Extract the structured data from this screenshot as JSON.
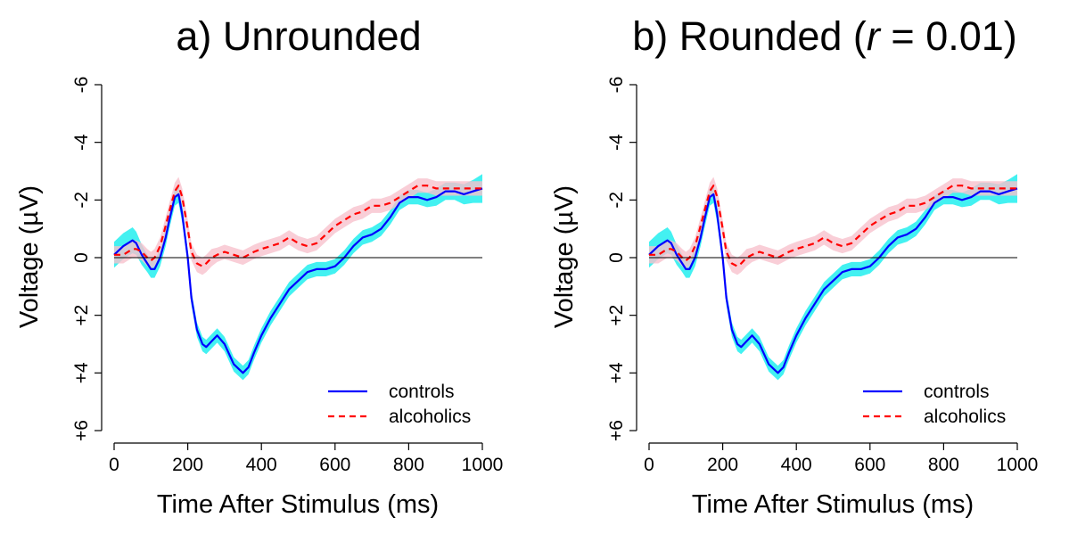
{
  "chart_data": [
    {
      "type": "line",
      "title_prefix": "a)  Unrounded",
      "title_italic": "",
      "title_suffix": "",
      "xlabel": "Time After Stimulus (ms)",
      "ylabel": "Voltage (µV)",
      "xlim": [
        0,
        1000
      ],
      "ylim": [
        6,
        -6
      ],
      "y_axis_inverted": true,
      "x_ticks": [
        "0",
        "200",
        "400",
        "600",
        "800",
        "1000"
      ],
      "y_ticks": [
        "-6",
        "-4",
        "-2",
        "0",
        "+2",
        "+4",
        "+6"
      ],
      "reference_line_y": 0,
      "legend_position": "bottom-right",
      "x": [
        0,
        25,
        50,
        60,
        75,
        90,
        100,
        110,
        125,
        140,
        150,
        165,
        175,
        185,
        200,
        210,
        225,
        240,
        250,
        265,
        280,
        300,
        325,
        350,
        365,
        380,
        400,
        425,
        450,
        475,
        500,
        525,
        550,
        575,
        600,
        625,
        650,
        675,
        700,
        725,
        750,
        775,
        800,
        825,
        850,
        875,
        900,
        925,
        950,
        975,
        1000
      ],
      "series": [
        {
          "name": "controls",
          "color": "#0000ff",
          "band_color": "#22eeee",
          "style": "solid",
          "values": [
            -0.1,
            -0.4,
            -0.6,
            -0.5,
            -0.1,
            0.2,
            0.4,
            0.4,
            0.0,
            -0.7,
            -1.3,
            -2.1,
            -2.2,
            -1.5,
            0.0,
            1.4,
            2.5,
            3.0,
            3.1,
            2.9,
            2.7,
            3.0,
            3.7,
            4.0,
            3.8,
            3.3,
            2.7,
            2.1,
            1.6,
            1.1,
            0.8,
            0.5,
            0.4,
            0.4,
            0.3,
            0.0,
            -0.4,
            -0.7,
            -0.8,
            -1.0,
            -1.4,
            -1.9,
            -2.1,
            -2.1,
            -2.0,
            -2.1,
            -2.3,
            -2.3,
            -2.2,
            -2.3,
            -2.4
          ],
          "band_halfwidth": [
            0.45,
            0.45,
            0.45,
            0.4,
            0.35,
            0.3,
            0.3,
            0.3,
            0.3,
            0.3,
            0.3,
            0.3,
            0.3,
            0.3,
            0.25,
            0.25,
            0.25,
            0.25,
            0.25,
            0.25,
            0.25,
            0.25,
            0.25,
            0.25,
            0.25,
            0.25,
            0.25,
            0.25,
            0.25,
            0.25,
            0.25,
            0.25,
            0.25,
            0.25,
            0.25,
            0.25,
            0.25,
            0.25,
            0.25,
            0.25,
            0.25,
            0.25,
            0.25,
            0.25,
            0.25,
            0.3,
            0.3,
            0.3,
            0.35,
            0.4,
            0.5
          ]
        },
        {
          "name": "alcoholics",
          "color": "#ff0000",
          "band_color": "#f7c2cd",
          "style": "dashed",
          "values": [
            -0.1,
            -0.1,
            -0.3,
            -0.3,
            -0.2,
            0.0,
            0.1,
            0.0,
            -0.4,
            -1.1,
            -1.6,
            -2.3,
            -2.5,
            -2.1,
            -1.0,
            -0.2,
            0.2,
            0.3,
            0.2,
            0.0,
            -0.1,
            -0.2,
            -0.1,
            0.0,
            -0.1,
            -0.2,
            -0.3,
            -0.4,
            -0.5,
            -0.7,
            -0.5,
            -0.4,
            -0.5,
            -0.8,
            -1.1,
            -1.3,
            -1.5,
            -1.6,
            -1.8,
            -1.8,
            -1.9,
            -2.1,
            -2.3,
            -2.5,
            -2.5,
            -2.4,
            -2.4,
            -2.4,
            -2.4,
            -2.4,
            -2.4
          ],
          "band_halfwidth": [
            0.3,
            0.3,
            0.3,
            0.3,
            0.3,
            0.3,
            0.3,
            0.3,
            0.3,
            0.3,
            0.3,
            0.3,
            0.3,
            0.3,
            0.3,
            0.3,
            0.3,
            0.3,
            0.3,
            0.3,
            0.25,
            0.25,
            0.25,
            0.25,
            0.25,
            0.25,
            0.25,
            0.25,
            0.25,
            0.25,
            0.25,
            0.25,
            0.25,
            0.25,
            0.25,
            0.25,
            0.25,
            0.25,
            0.25,
            0.25,
            0.25,
            0.25,
            0.25,
            0.25,
            0.25,
            0.25,
            0.25,
            0.25,
            0.25,
            0.25,
            0.25
          ]
        }
      ]
    },
    {
      "type": "line",
      "title_prefix": "b)  Rounded (",
      "title_italic": "r",
      "title_suffix": " = 0.01)",
      "xlabel": "Time After Stimulus (ms)",
      "ylabel": "Voltage (µV)",
      "xlim": [
        0,
        1000
      ],
      "ylim": [
        6,
        -6
      ],
      "y_axis_inverted": true,
      "x_ticks": [
        "0",
        "200",
        "400",
        "600",
        "800",
        "1000"
      ],
      "y_ticks": [
        "-6",
        "-4",
        "-2",
        "0",
        "+2",
        "+4",
        "+6"
      ],
      "reference_line_y": 0,
      "legend_position": "bottom-right",
      "x": [
        0,
        25,
        50,
        60,
        75,
        90,
        100,
        110,
        125,
        140,
        150,
        165,
        175,
        185,
        200,
        210,
        225,
        240,
        250,
        265,
        280,
        300,
        325,
        350,
        365,
        380,
        400,
        425,
        450,
        475,
        500,
        525,
        550,
        575,
        600,
        625,
        650,
        675,
        700,
        725,
        750,
        775,
        800,
        825,
        850,
        875,
        900,
        925,
        950,
        975,
        1000
      ],
      "series": [
        {
          "name": "controls",
          "color": "#0000ff",
          "band_color": "#22eeee",
          "style": "solid",
          "values": [
            -0.1,
            -0.4,
            -0.6,
            -0.5,
            -0.1,
            0.2,
            0.4,
            0.4,
            0.0,
            -0.7,
            -1.3,
            -2.1,
            -2.2,
            -1.5,
            0.0,
            1.4,
            2.5,
            3.0,
            3.1,
            2.9,
            2.7,
            3.0,
            3.7,
            4.0,
            3.8,
            3.3,
            2.7,
            2.1,
            1.6,
            1.1,
            0.8,
            0.5,
            0.4,
            0.4,
            0.3,
            0.0,
            -0.4,
            -0.7,
            -0.8,
            -1.0,
            -1.4,
            -1.9,
            -2.1,
            -2.1,
            -2.0,
            -2.1,
            -2.3,
            -2.3,
            -2.2,
            -2.3,
            -2.4
          ],
          "band_halfwidth": [
            0.45,
            0.45,
            0.45,
            0.4,
            0.35,
            0.3,
            0.3,
            0.3,
            0.3,
            0.3,
            0.3,
            0.3,
            0.3,
            0.3,
            0.25,
            0.25,
            0.25,
            0.25,
            0.25,
            0.25,
            0.25,
            0.25,
            0.25,
            0.25,
            0.25,
            0.25,
            0.25,
            0.25,
            0.25,
            0.25,
            0.25,
            0.25,
            0.25,
            0.25,
            0.25,
            0.25,
            0.25,
            0.25,
            0.25,
            0.25,
            0.25,
            0.25,
            0.25,
            0.25,
            0.25,
            0.3,
            0.3,
            0.3,
            0.35,
            0.4,
            0.5
          ]
        },
        {
          "name": "alcoholics",
          "color": "#ff0000",
          "band_color": "#f7c2cd",
          "style": "dashed",
          "values": [
            -0.1,
            -0.1,
            -0.3,
            -0.3,
            -0.2,
            0.0,
            0.1,
            0.0,
            -0.4,
            -1.1,
            -1.6,
            -2.3,
            -2.5,
            -2.1,
            -1.0,
            -0.2,
            0.2,
            0.3,
            0.2,
            0.0,
            -0.1,
            -0.2,
            -0.1,
            0.0,
            -0.1,
            -0.2,
            -0.3,
            -0.4,
            -0.5,
            -0.7,
            -0.5,
            -0.4,
            -0.5,
            -0.8,
            -1.1,
            -1.3,
            -1.5,
            -1.6,
            -1.8,
            -1.8,
            -1.9,
            -2.1,
            -2.3,
            -2.5,
            -2.5,
            -2.4,
            -2.4,
            -2.4,
            -2.4,
            -2.4,
            -2.4
          ],
          "band_halfwidth": [
            0.3,
            0.3,
            0.3,
            0.3,
            0.3,
            0.3,
            0.3,
            0.3,
            0.3,
            0.3,
            0.3,
            0.3,
            0.3,
            0.3,
            0.3,
            0.3,
            0.3,
            0.3,
            0.3,
            0.3,
            0.25,
            0.25,
            0.25,
            0.25,
            0.25,
            0.25,
            0.25,
            0.25,
            0.25,
            0.25,
            0.25,
            0.25,
            0.25,
            0.25,
            0.25,
            0.25,
            0.25,
            0.25,
            0.25,
            0.25,
            0.25,
            0.25,
            0.25,
            0.25,
            0.25,
            0.25,
            0.25,
            0.25,
            0.25,
            0.25,
            0.25
          ]
        }
      ]
    }
  ]
}
